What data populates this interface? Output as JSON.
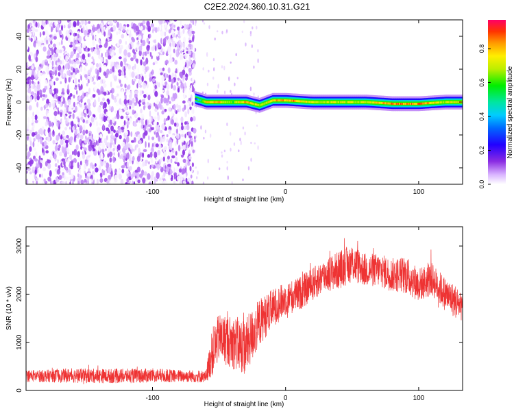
{
  "title": "C2E2.2024.360.10.31.G21",
  "colors": {
    "snr_line": "#ee3333",
    "frame": "#000000",
    "background": "#ffffff"
  },
  "chart_data": [
    {
      "type": "heatmap",
      "xlabel": "Height of straight line (km)",
      "ylabel": "Frequency (Hz)",
      "xlim": [
        -195,
        133
      ],
      "ylim": [
        -50,
        50
      ],
      "xticks": [
        -100,
        0,
        100
      ],
      "yticks": [
        -40,
        -20,
        0,
        20,
        40
      ],
      "grid": false,
      "colorbar": {
        "label": "Normalized spectral amplitude",
        "range": [
          0,
          0.97
        ],
        "ticks": [
          0.0,
          0.2,
          0.4,
          0.6,
          0.8
        ],
        "colormap": "rainbow (purple to red)",
        "placement": "right"
      },
      "regions": [
        {
          "description": "noise-dominated broadband speckle",
          "x_range": [
            -195,
            -68
          ],
          "freq_range": [
            -50,
            50
          ],
          "amplitude_range": [
            0.0,
            0.15
          ]
        },
        {
          "description": "sparse faint speckle",
          "x_range": [
            -68,
            -20
          ],
          "freq_range": [
            -50,
            50
          ],
          "amplitude_range": [
            0.0,
            0.05
          ]
        },
        {
          "description": "narrow carrier band",
          "x_range": [
            -68,
            133
          ],
          "freq_range": [
            -4,
            4
          ],
          "amplitude_range": [
            0.1,
            0.97
          ]
        }
      ],
      "carrier_track": {
        "x": [
          -68,
          -60,
          -50,
          -40,
          -30,
          -20,
          -10,
          0,
          20,
          40,
          60,
          80,
          100,
          120,
          133
        ],
        "freq": [
          2,
          0,
          0,
          0,
          0,
          -2,
          1,
          1,
          0,
          0,
          0,
          -1,
          -1,
          0,
          0
        ],
        "peak_amplitude": [
          0.3,
          0.9,
          0.9,
          0.7,
          0.97,
          0.7,
          0.9,
          0.97,
          0.8,
          0.8,
          0.8,
          0.95,
          0.95,
          0.8,
          0.85
        ]
      }
    },
    {
      "type": "line",
      "xlabel": "Height of straight line (km)",
      "ylabel": "SNR (10 * v/v)",
      "xlim": [
        -195,
        133
      ],
      "ylim": [
        0,
        3400
      ],
      "xticks": [
        -100,
        0,
        100
      ],
      "yticks": [
        0,
        1000,
        2000,
        3000
      ],
      "grid": false,
      "series": [
        {
          "x": [
            -195,
            -180,
            -160,
            -140,
            -120,
            -100,
            -80,
            -60,
            -55,
            -50,
            -40,
            -30,
            -20,
            -10,
            0,
            10,
            20,
            30,
            40,
            50,
            60,
            70,
            80,
            90,
            100,
            110,
            120,
            130,
            133
          ],
          "y": [
            300,
            300,
            310,
            300,
            300,
            310,
            300,
            290,
            800,
            1100,
            1000,
            900,
            1400,
            1700,
            1900,
            2000,
            2200,
            2400,
            2500,
            2650,
            2500,
            2500,
            2400,
            2400,
            2200,
            2300,
            2000,
            1800,
            1800
          ],
          "noise": [
            130,
            130,
            150,
            150,
            150,
            150,
            130,
            130,
            500,
            500,
            550,
            600,
            500,
            400,
            350,
            350,
            350,
            350,
            400,
            400,
            350,
            350,
            350,
            400,
            350,
            350,
            350,
            350,
            350
          ]
        }
      ]
    }
  ]
}
